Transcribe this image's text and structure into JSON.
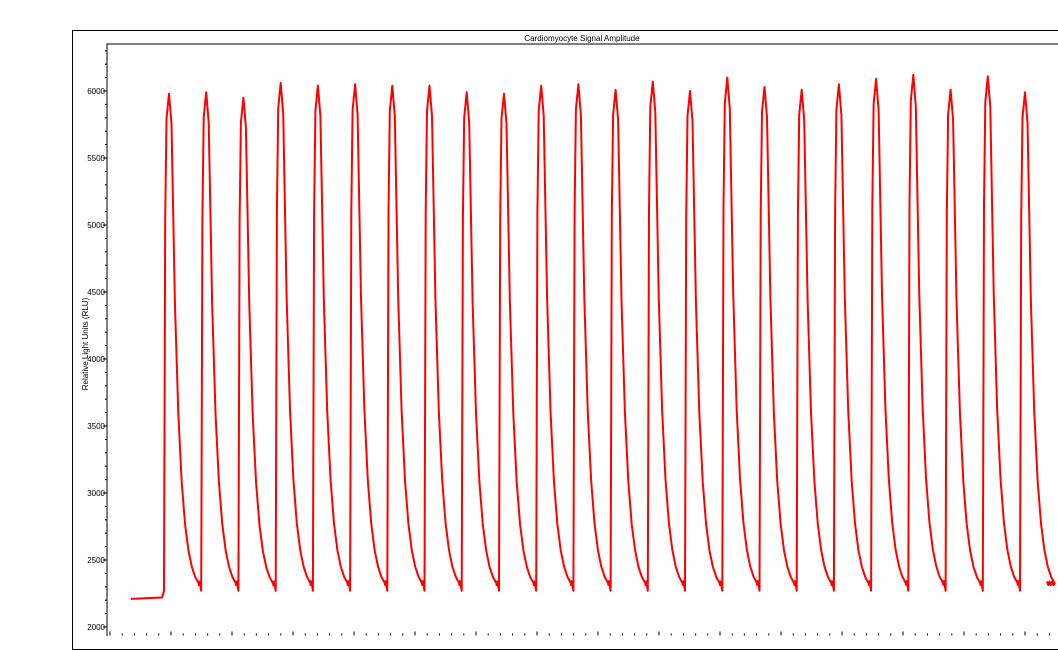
{
  "chart_data": {
    "type": "line",
    "title": "Cardiomyocyte Signal Amplitude",
    "ylabel": "Relative Light Units (RLU)",
    "xlabel": "",
    "ylim": [
      1980,
      6380
    ],
    "yticks": [
      2000,
      2500,
      3000,
      3500,
      4000,
      4500,
      5000,
      5500,
      6000
    ],
    "grid": false,
    "legend": "none",
    "line_color": "#ff0000",
    "series": [
      {
        "baseline": 2250,
        "start_value": 2210,
        "end_value": 2340,
        "peaks": [
          5980,
          5990,
          5950,
          6060,
          6040,
          6050,
          6040,
          6040,
          5990,
          5980,
          6040,
          6050,
          6010,
          6070,
          6000,
          6100,
          6030,
          6010,
          6050,
          6090,
          6120,
          6010,
          6110,
          5990
        ]
      }
    ]
  }
}
